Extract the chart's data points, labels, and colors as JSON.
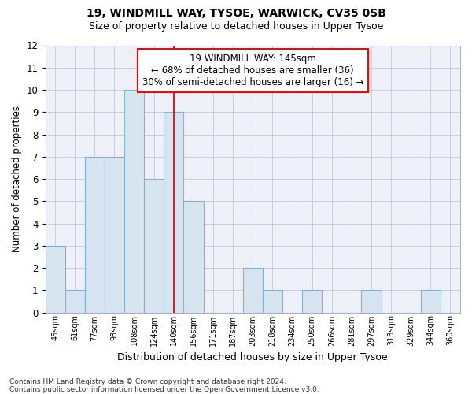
{
  "title_line1": "19, WINDMILL WAY, TYSOE, WARWICK, CV35 0SB",
  "title_line2": "Size of property relative to detached houses in Upper Tysoe",
  "xlabel": "Distribution of detached houses by size in Upper Tysoe",
  "ylabel": "Number of detached properties",
  "categories": [
    "45sqm",
    "61sqm",
    "77sqm",
    "93sqm",
    "108sqm",
    "124sqm",
    "140sqm",
    "156sqm",
    "171sqm",
    "187sqm",
    "203sqm",
    "218sqm",
    "234sqm",
    "250sqm",
    "266sqm",
    "281sqm",
    "297sqm",
    "313sqm",
    "329sqm",
    "344sqm",
    "360sqm"
  ],
  "values": [
    3,
    1,
    7,
    7,
    10,
    6,
    9,
    5,
    0,
    0,
    2,
    1,
    0,
    1,
    0,
    0,
    1,
    0,
    0,
    1,
    0
  ],
  "bar_color": "#d6e4f0",
  "bar_edge_color": "#7fb3d3",
  "highlight_bar_index": 6,
  "highlight_line_color": "#cc0000",
  "ylim": [
    0,
    12
  ],
  "yticks": [
    0,
    1,
    2,
    3,
    4,
    5,
    6,
    7,
    8,
    9,
    10,
    11,
    12
  ],
  "annotation_text": "19 WINDMILL WAY: 145sqm\n← 68% of detached houses are smaller (36)\n30% of semi-detached houses are larger (16) →",
  "footnote1": "Contains HM Land Registry data © Crown copyright and database right 2024.",
  "footnote2": "Contains public sector information licensed under the Open Government Licence v3.0.",
  "bg_color": "#eef0f8",
  "grid_color": "#c8cce0",
  "fig_bg": "#ffffff"
}
